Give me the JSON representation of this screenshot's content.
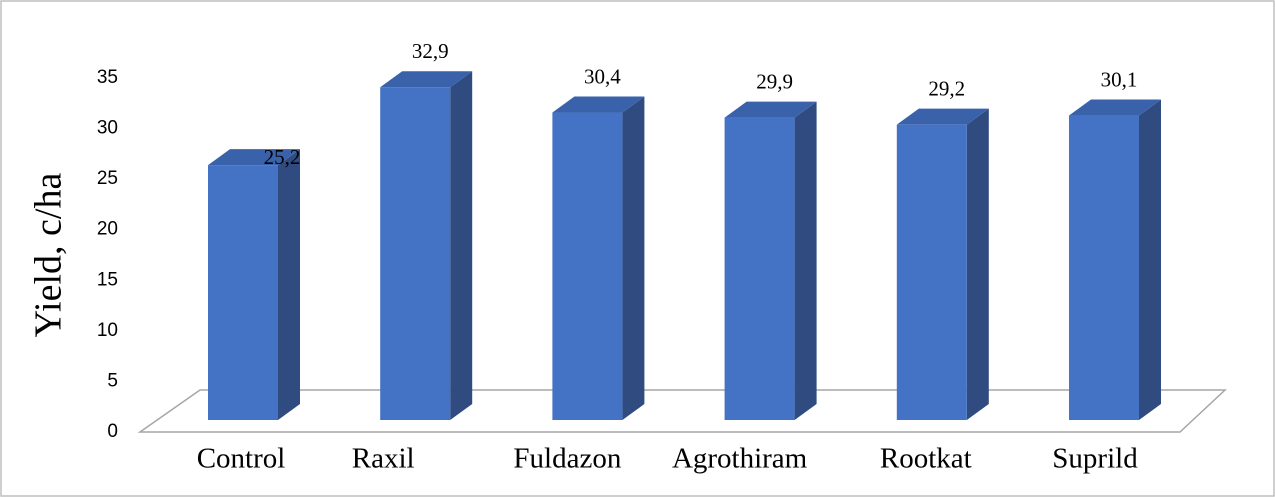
{
  "chart_data": {
    "type": "bar3d",
    "y_label": "Yield, c/ha",
    "categories": [
      "Control",
      "Raxil",
      "Fuldazon",
      "Agrothiram",
      "Rootkat",
      "Suprild"
    ],
    "values": [
      25.2,
      32.9,
      30.4,
      29.9,
      29.2,
      30.1
    ],
    "value_labels": [
      "25,2",
      "32,9",
      "30,4",
      "29,9",
      "29,2",
      "30,1"
    ],
    "color": "#4472c4",
    "ylim": [
      0,
      35
    ],
    "yticks": [
      0,
      5,
      10,
      15,
      20,
      25,
      30,
      35
    ],
    "grid": false
  }
}
